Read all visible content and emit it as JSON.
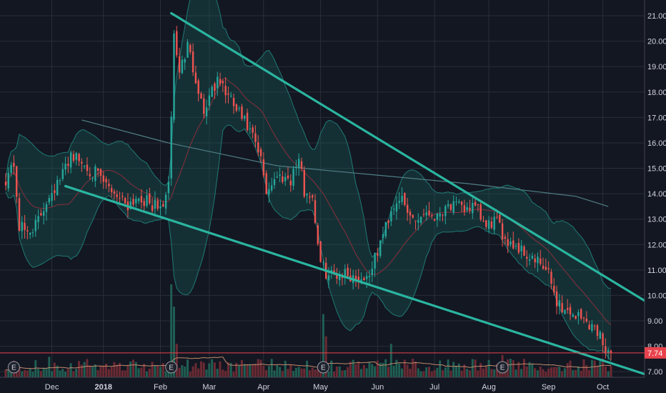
{
  "chart_data": {
    "type": "candlestick",
    "price_axis": {
      "ylim": [
        6.78,
        21.62
      ],
      "ticks": [
        7,
        8,
        9,
        10,
        11,
        12,
        13,
        14,
        15,
        16,
        17,
        18,
        19,
        20,
        21
      ],
      "tick_labels": [
        "7.00",
        "8.00",
        "9.00",
        "10.00",
        "11.00",
        "12.00",
        "13.00",
        "14.00",
        "15.00",
        "16.00",
        "17.00",
        "18.00",
        "19.00",
        "20.00",
        "21.00"
      ]
    },
    "time_axis": {
      "labels": [
        {
          "text": "Dec",
          "index": 17,
          "bold": false
        },
        {
          "text": "2018",
          "index": 36,
          "bold": true
        },
        {
          "text": "Feb",
          "index": 57,
          "bold": false
        },
        {
          "text": "Mar",
          "index": 75,
          "bold": false
        },
        {
          "text": "Apr",
          "index": 95,
          "bold": false
        },
        {
          "text": "May",
          "index": 116,
          "bold": false
        },
        {
          "text": "Jun",
          "index": 137,
          "bold": false
        },
        {
          "text": "Jul",
          "index": 158,
          "bold": false
        },
        {
          "text": "Aug",
          "index": 178,
          "bold": false
        },
        {
          "text": "Sep",
          "index": 200,
          "bold": false
        },
        {
          "text": "Oct",
          "index": 220,
          "bold": false
        }
      ]
    },
    "last_price": {
      "value": 7.74,
      "label": "7.74"
    },
    "earnings_markers": {
      "label": "E",
      "indices": [
        3,
        61,
        117,
        183
      ]
    },
    "price_keypoints": [
      [
        0,
        14.6
      ],
      [
        3,
        15.2
      ],
      [
        5,
        12.7
      ],
      [
        8,
        12.5
      ],
      [
        12,
        12.9
      ],
      [
        16,
        14.0
      ],
      [
        20,
        14.5
      ],
      [
        24,
        15.6
      ],
      [
        28,
        15.2
      ],
      [
        33,
        14.8
      ],
      [
        37,
        14.3
      ],
      [
        41,
        14.0
      ],
      [
        45,
        13.6
      ],
      [
        49,
        13.9
      ],
      [
        53,
        13.6
      ],
      [
        57,
        13.4
      ],
      [
        60,
        14.2
      ],
      [
        62,
        20.2
      ],
      [
        64,
        18.8
      ],
      [
        67,
        19.8
      ],
      [
        70,
        18.6
      ],
      [
        73,
        17.2
      ],
      [
        76,
        18.2
      ],
      [
        79,
        18.4
      ],
      [
        82,
        17.8
      ],
      [
        85,
        17.3
      ],
      [
        88,
        16.8
      ],
      [
        91,
        16.2
      ],
      [
        94,
        15.3
      ],
      [
        96,
        14.1
      ],
      [
        99,
        14.6
      ],
      [
        102,
        14.7
      ],
      [
        105,
        14.6
      ],
      [
        108,
        15.4
      ],
      [
        110,
        14.1
      ],
      [
        113,
        13.9
      ],
      [
        116,
        11.2
      ],
      [
        119,
        10.8
      ],
      [
        124,
        10.9
      ],
      [
        129,
        10.7
      ],
      [
        133,
        10.7
      ],
      [
        136,
        11.4
      ],
      [
        139,
        12.4
      ],
      [
        142,
        13.4
      ],
      [
        145,
        13.9
      ],
      [
        148,
        13.2
      ],
      [
        151,
        13.0
      ],
      [
        155,
        13.3
      ],
      [
        159,
        13.1
      ],
      [
        162,
        13.6
      ],
      [
        165,
        13.5
      ],
      [
        168,
        13.4
      ],
      [
        171,
        13.5
      ],
      [
        174,
        13.3
      ],
      [
        177,
        12.6
      ],
      [
        180,
        13.0
      ],
      [
        183,
        12.4
      ],
      [
        186,
        12.1
      ],
      [
        190,
        11.8
      ],
      [
        193,
        11.5
      ],
      [
        197,
        11.2
      ],
      [
        200,
        10.8
      ],
      [
        203,
        9.8
      ],
      [
        206,
        9.4
      ],
      [
        209,
        9.3
      ],
      [
        212,
        9.1
      ],
      [
        215,
        8.9
      ],
      [
        218,
        8.6
      ],
      [
        221,
        8.0
      ],
      [
        223,
        7.74
      ]
    ],
    "volume_spikes": [
      {
        "index": 16,
        "value": 0.55
      },
      {
        "index": 61,
        "value": 2.5
      },
      {
        "index": 62,
        "value": 1.9
      },
      {
        "index": 63,
        "value": 0.9
      },
      {
        "index": 117,
        "value": 1.7
      },
      {
        "index": 118,
        "value": 1.1
      },
      {
        "index": 142,
        "value": 0.9
      },
      {
        "index": 150,
        "value": 0.5
      },
      {
        "index": 183,
        "value": 0.6
      },
      {
        "index": 186,
        "value": 0.5
      },
      {
        "index": 220,
        "value": 0.5
      }
    ],
    "indicators": {
      "moving_average_long": [
        [
          28,
          16.9
        ],
        [
          60,
          16.0
        ],
        [
          100,
          15.1
        ],
        [
          130,
          14.8
        ],
        [
          170,
          14.4
        ],
        [
          210,
          13.9
        ],
        [
          222,
          13.5
        ]
      ],
      "bollinger_period": 20
    },
    "trendlines": [
      {
        "name": "upper",
        "from": [
          61,
          21.1
        ],
        "to": [
          243,
          9.3
        ]
      },
      {
        "name": "lower",
        "from": [
          22,
          14.3
        ],
        "to": [
          237,
          6.85
        ]
      }
    ],
    "colors": {
      "background": "#131722",
      "grid": "#2a2e39",
      "up_candle": "#26a69a",
      "down_candle": "#ef5350",
      "trendline": "#2ab5a0",
      "band_line": "#1e7a74",
      "band_fill": "#1b5e5a",
      "middle_band": "#8b2e3a",
      "moving_average_long": "#4f7f85",
      "volume_up": "#1f5e52",
      "volume_down": "#6b2a33",
      "volume_ma": "#c08a6c",
      "last_price": "#e8434d",
      "axis_text": "#d1d4dc"
    }
  }
}
